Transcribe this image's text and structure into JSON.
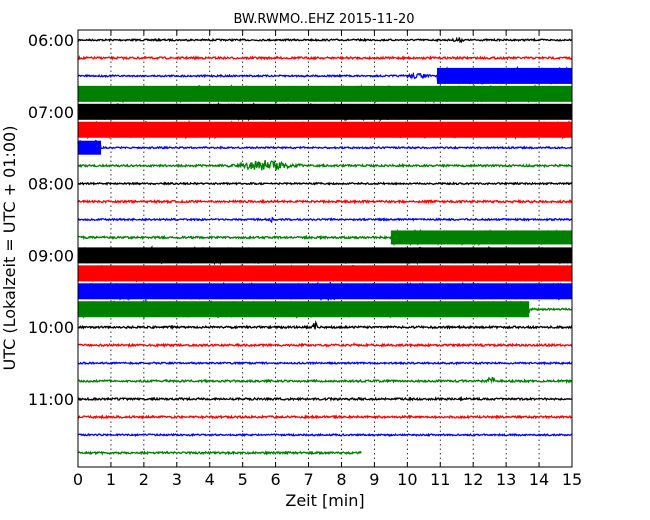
{
  "chart_data": {
    "type": "line",
    "title": "BW.RWMO..EHZ 2015-11-20",
    "xlabel": "Zeit  [min]",
    "ylabel": "UTC (Lokalzeit = UTC + 01:00)",
    "xlim": [
      0,
      15
    ],
    "x_ticks": [
      "0",
      "1",
      "2",
      "3",
      "4",
      "5",
      "6",
      "7",
      "8",
      "9",
      "10",
      "11",
      "12",
      "13",
      "14",
      "15"
    ],
    "y_ticks": [
      {
        "label": "06:00",
        "row": 0
      },
      {
        "label": "07:00",
        "row": 4
      },
      {
        "label": "08:00",
        "row": 8
      },
      {
        "label": "09:00",
        "row": 12
      },
      {
        "label": "10:00",
        "row": 16
      },
      {
        "label": "11:00",
        "row": 20
      }
    ],
    "row_interval_min": 15,
    "colors": [
      "#000000",
      "#ff0000",
      "#0000ff",
      "#008000"
    ],
    "grid": "vertical dotted",
    "traces": [
      {
        "start": "06:00",
        "end_min": 15,
        "amp": 0.8,
        "events": [
          {
            "t0": 11.3,
            "t1": 11.8,
            "amp": 3
          }
        ]
      },
      {
        "start": "06:15",
        "end_min": 15,
        "amp": 1.0,
        "events": []
      },
      {
        "start": "06:30",
        "end_min": 15,
        "amp": 0.8,
        "events": [
          {
            "t0": 9.7,
            "t1": 10.9,
            "amp": 3
          },
          {
            "t0": 10.9,
            "t1": 15,
            "amp": 8,
            "block": true
          }
        ]
      },
      {
        "start": "06:45",
        "end_min": 15,
        "amp": 8,
        "block": true,
        "events": []
      },
      {
        "start": "07:00",
        "end_min": 15,
        "amp": 8,
        "block": true,
        "events": []
      },
      {
        "start": "07:15",
        "end_min": 15,
        "amp": 8,
        "block": true,
        "events": []
      },
      {
        "start": "07:30",
        "end_min": 15,
        "amp": 0.8,
        "events": [
          {
            "t0": 0.0,
            "t1": 0.7,
            "amp": 7,
            "block": true
          }
        ]
      },
      {
        "start": "07:45",
        "end_min": 15,
        "amp": 1.0,
        "events": [
          {
            "t0": 4.5,
            "t1": 6.8,
            "amp": 6
          }
        ]
      },
      {
        "start": "08:00",
        "end_min": 15,
        "amp": 0.8,
        "events": []
      },
      {
        "start": "08:15",
        "end_min": 15,
        "amp": 1.0,
        "events": []
      },
      {
        "start": "08:30",
        "end_min": 15,
        "amp": 0.8,
        "events": [
          {
            "t0": 5.8,
            "t1": 5.95,
            "amp": 3
          }
        ]
      },
      {
        "start": "08:45",
        "end_min": 15,
        "amp": 1.0,
        "events": [
          {
            "t0": 9.5,
            "t1": 15,
            "amp": 7,
            "block": true
          }
        ]
      },
      {
        "start": "09:00",
        "end_min": 15,
        "amp": 8,
        "block": true,
        "events": []
      },
      {
        "start": "09:15",
        "end_min": 15,
        "amp": 8,
        "block": true,
        "events": []
      },
      {
        "start": "09:30",
        "end_min": 15,
        "amp": 8,
        "block": true,
        "events": [
          {
            "t0": 5.8,
            "t1": 9.5,
            "amp": 11
          },
          {
            "t0": 14.3,
            "t1": 15,
            "amp": 12
          }
        ]
      },
      {
        "start": "09:45",
        "end_min": 15,
        "amp": 8,
        "block": true,
        "events": [
          {
            "t0": 1.6,
            "t1": 2.6,
            "amp": 12
          }
        ],
        "block_end": 13.7
      },
      {
        "start": "10:00",
        "end_min": 15,
        "amp": 1.0,
        "events": [
          {
            "t0": 7.1,
            "t1": 7.3,
            "amp": 7
          }
        ]
      },
      {
        "start": "10:15",
        "end_min": 15,
        "amp": 1.0,
        "events": [
          {
            "t0": 8.3,
            "t1": 8.45,
            "amp": 4
          }
        ]
      },
      {
        "start": "10:30",
        "end_min": 15,
        "amp": 0.8,
        "events": []
      },
      {
        "start": "10:45",
        "end_min": 15,
        "amp": 1.0,
        "events": [
          {
            "t0": 12.4,
            "t1": 12.7,
            "amp": 6
          }
        ]
      },
      {
        "start": "11:00",
        "end_min": 15,
        "amp": 1.0,
        "events": []
      },
      {
        "start": "11:15",
        "end_min": 15,
        "amp": 1.0,
        "events": []
      },
      {
        "start": "11:30",
        "end_min": 15,
        "amp": 0.8,
        "events": []
      },
      {
        "start": "11:45",
        "end_min": 8.6,
        "amp": 1.0,
        "events": []
      }
    ]
  }
}
